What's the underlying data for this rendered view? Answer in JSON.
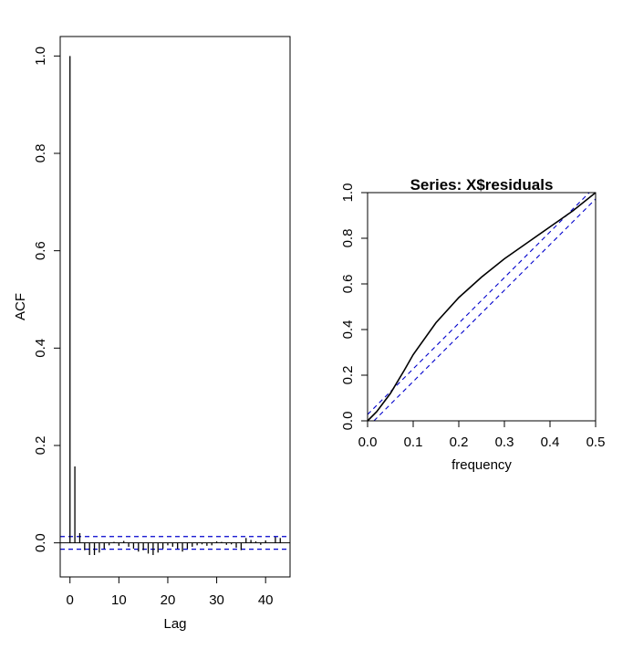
{
  "chart_data": [
    {
      "type": "bar",
      "title": "",
      "xlabel": "Lag",
      "ylabel": "ACF",
      "xlim": [
        -2,
        45
      ],
      "ylim": [
        -0.07,
        1.04
      ],
      "xticks": [
        0,
        10,
        20,
        30,
        40
      ],
      "xtick_labels": [
        "0",
        "10",
        "20",
        "30",
        "40"
      ],
      "yticks": [
        0.0,
        0.2,
        0.4,
        0.6,
        0.8,
        1.0
      ],
      "ytick_labels": [
        "0.0",
        "0.2",
        "0.4",
        "0.6",
        "0.8",
        "1.0"
      ],
      "lags": [
        0,
        1,
        2,
        3,
        4,
        5,
        6,
        7,
        8,
        9,
        10,
        11,
        12,
        13,
        14,
        15,
        16,
        17,
        18,
        19,
        20,
        21,
        22,
        23,
        24,
        25,
        26,
        27,
        28,
        29,
        30,
        31,
        32,
        33,
        34,
        35,
        36,
        37,
        38,
        39,
        40,
        41,
        42,
        43
      ],
      "values": [
        1.0,
        0.157,
        0.02,
        -0.015,
        -0.025,
        -0.025,
        -0.02,
        -0.012,
        -0.005,
        0.002,
        -0.006,
        0.004,
        -0.008,
        -0.012,
        -0.018,
        -0.015,
        -0.022,
        -0.025,
        -0.02,
        -0.012,
        -0.005,
        -0.008,
        -0.012,
        -0.018,
        -0.012,
        -0.008,
        -0.005,
        -0.003,
        -0.006,
        -0.005,
        0.003,
        0.002,
        -0.004,
        -0.003,
        -0.01,
        -0.015,
        0.01,
        0.006,
        0.003,
        -0.004,
        0.005,
        0.0,
        0.012,
        0.01
      ],
      "confidence_band": 0.013,
      "colors": {
        "bars": "#000000",
        "zero_line": "#000000",
        "band": "#0000cc"
      },
      "grid": false
    },
    {
      "type": "line",
      "title": "Series:  X$residuals",
      "xlabel": "frequency",
      "ylabel": "",
      "xlim": [
        0,
        0.5
      ],
      "ylim": [
        0,
        1
      ],
      "xticks": [
        0,
        0.1,
        0.2,
        0.3,
        0.4,
        0.5
      ],
      "xtick_labels": [
        "0.0",
        "0.1",
        "0.2",
        "0.3",
        "0.4",
        "0.5"
      ],
      "yticks": [
        0,
        0.2,
        0.4,
        0.6,
        0.8,
        1.0
      ],
      "ytick_labels": [
        "0.0",
        "0.2",
        "0.4",
        "0.6",
        "0.8",
        "1.0"
      ],
      "series": [
        {
          "x": [
            0,
            0.02,
            0.05,
            0.08,
            0.1,
            0.15,
            0.2,
            0.25,
            0.3,
            0.35,
            0.4,
            0.45,
            0.5
          ],
          "y": [
            0,
            0.04,
            0.12,
            0.22,
            0.29,
            0.43,
            0.54,
            0.63,
            0.71,
            0.78,
            0.85,
            0.92,
            1.0
          ]
        }
      ],
      "bounds": {
        "offset": 0.0278
      },
      "colors": {
        "line": "#000000",
        "bounds": "#0000cc"
      },
      "grid": false
    }
  ]
}
